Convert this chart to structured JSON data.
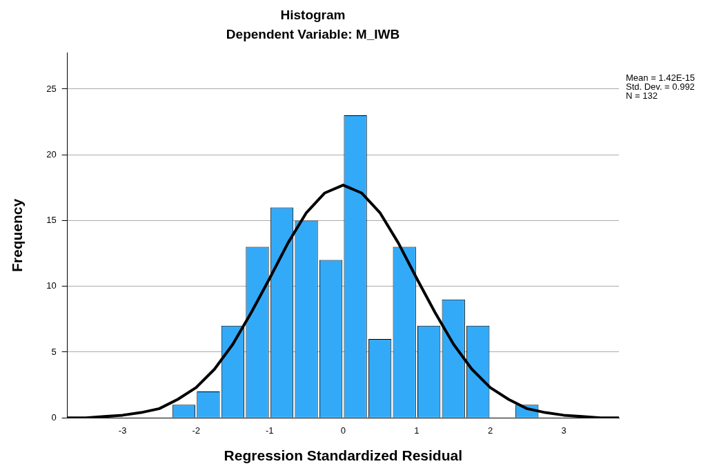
{
  "chart_data": {
    "type": "histogram",
    "title": "Histogram",
    "subtitle": "Dependent Variable: M_IWB",
    "xlabel": "Regression Standardized Residual",
    "ylabel": "Frequency",
    "bins": [
      -2.333,
      -2,
      -1.667,
      -1.333,
      -1,
      -0.667,
      -0.333,
      0,
      0.333,
      0.667,
      1,
      1.333,
      1.667,
      2,
      2.333,
      2.667
    ],
    "values": [
      1,
      2,
      7,
      13,
      16,
      15,
      12,
      23,
      6,
      13,
      7,
      9,
      7,
      0,
      1
    ],
    "color": "#33aaf8",
    "series": [
      {
        "type": "line",
        "color": "#000000",
        "x": [
          -3.75,
          -3.5,
          -3.25,
          -3,
          -2.75,
          -2.5,
          -2.25,
          -2,
          -1.75,
          -1.5,
          -1.25,
          -1,
          -0.75,
          -0.5,
          -0.25,
          0,
          0.25,
          0.5,
          0.75,
          1,
          1.25,
          1.5,
          1.75,
          2,
          2.25,
          2.5,
          2.75,
          3,
          3.25,
          3.5,
          3.75
        ],
        "values": [
          0,
          0,
          0.1,
          0.2,
          0.4,
          0.7,
          1.4,
          2.3,
          3.7,
          5.6,
          8,
          10.6,
          13.3,
          15.6,
          17.1,
          17.7,
          17.1,
          15.6,
          13.3,
          10.6,
          8,
          5.6,
          3.7,
          2.3,
          1.4,
          0.7,
          0.4,
          0.2,
          0.1,
          0,
          0
        ]
      }
    ],
    "xlim": [
      -3.75,
      3.75
    ],
    "xticks": [
      -3,
      -2,
      -1,
      0,
      1,
      2,
      3
    ],
    "ylim": [
      0,
      27.75
    ],
    "yticks": [
      0,
      5,
      10,
      15,
      20,
      25
    ],
    "grid": "y",
    "legend": false,
    "marker": "none",
    "line_style": "solid",
    "annotations": [
      "Mean = 1.42E-15",
      "Std. Dev. = 0.992",
      "N = 132"
    ]
  }
}
